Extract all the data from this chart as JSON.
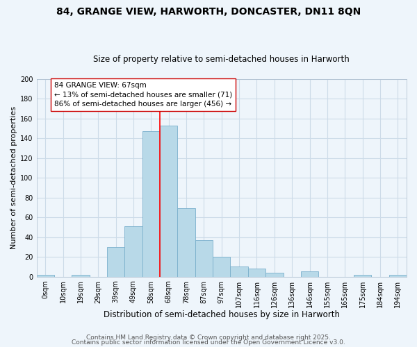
{
  "title": "84, GRANGE VIEW, HARWORTH, DONCASTER, DN11 8QN",
  "subtitle": "Size of property relative to semi-detached houses in Harworth",
  "xlabel": "Distribution of semi-detached houses by size in Harworth",
  "ylabel": "Number of semi-detached properties",
  "bin_labels": [
    "0sqm",
    "10sqm",
    "19sqm",
    "29sqm",
    "39sqm",
    "49sqm",
    "58sqm",
    "68sqm",
    "78sqm",
    "87sqm",
    "97sqm",
    "107sqm",
    "116sqm",
    "126sqm",
    "136sqm",
    "146sqm",
    "155sqm",
    "165sqm",
    "175sqm",
    "184sqm",
    "194sqm"
  ],
  "bar_heights": [
    2,
    0,
    2,
    0,
    30,
    51,
    147,
    153,
    69,
    37,
    20,
    10,
    8,
    4,
    0,
    5,
    0,
    0,
    2,
    0,
    2
  ],
  "bar_color": "#b8d9e8",
  "bar_edge_color": "#7ab0cc",
  "vline_color": "red",
  "vline_x_index": 6.5,
  "annotation_title": "84 GRANGE VIEW: 67sqm",
  "annotation_line1": "← 13% of semi-detached houses are smaller (71)",
  "annotation_line2": "86% of semi-detached houses are larger (456) →",
  "annotation_box_color": "white",
  "annotation_box_edge": "#cc0000",
  "ylim": [
    0,
    200
  ],
  "yticks": [
    0,
    20,
    40,
    60,
    80,
    100,
    120,
    140,
    160,
    180,
    200
  ],
  "footer1": "Contains HM Land Registry data © Crown copyright and database right 2025.",
  "footer2": "Contains public sector information licensed under the Open Government Licence v3.0.",
  "bg_color": "#eef5fb",
  "grid_color": "#ccdbe8",
  "title_fontsize": 10,
  "subtitle_fontsize": 8.5,
  "xlabel_fontsize": 8.5,
  "ylabel_fontsize": 8,
  "tick_fontsize": 7,
  "annotation_fontsize": 7.5,
  "footer_fontsize": 6.5
}
